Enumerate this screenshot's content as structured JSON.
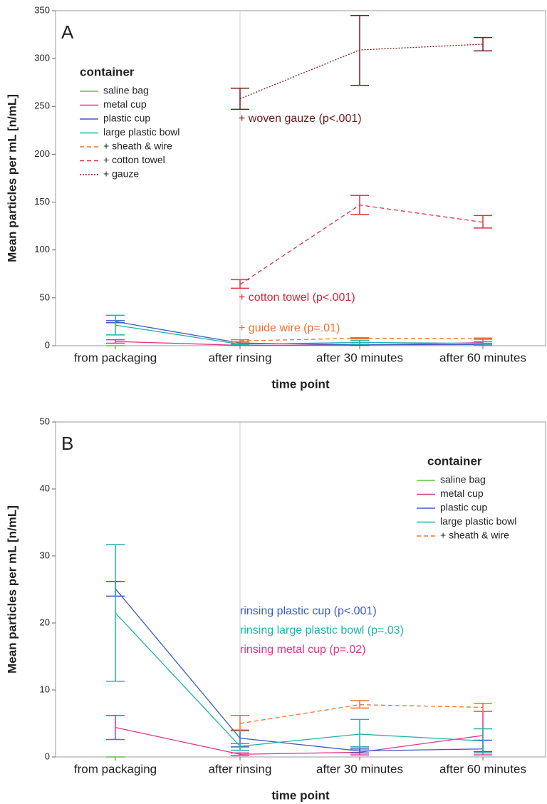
{
  "chart_data": [
    {
      "type": "line",
      "label": "A",
      "x_label": "time point",
      "y_label": "Mean particles per mL [n/mL]",
      "categories": [
        "from packaging",
        "after rinsing",
        "after 30 minutes",
        "after 60 minutes"
      ],
      "ylim": [
        0,
        350
      ],
      "yticks": [
        0,
        50,
        100,
        150,
        200,
        250,
        300,
        350
      ],
      "legend_title": "container",
      "legend": "upper left",
      "series": [
        {
          "name": "saline bag",
          "color": "#5cc43c",
          "dash": "solid",
          "values": [
            0,
            null,
            null,
            null
          ],
          "lower": [
            0,
            null,
            null,
            null
          ],
          "upper": [
            0,
            null,
            null,
            null
          ]
        },
        {
          "name": "metal cup",
          "color": "#e0358a",
          "dash": "solid",
          "values": [
            4.4,
            0.4,
            0.7,
            3.2
          ],
          "lower": [
            2.6,
            0.2,
            0.3,
            0.3
          ],
          "upper": [
            6.2,
            0.6,
            1.5,
            6.8
          ]
        },
        {
          "name": "plastic cup",
          "color": "#3a5bc4",
          "dash": "solid",
          "values": [
            25.1,
            2.8,
            0.9,
            1.2
          ],
          "lower": [
            24.0,
            1.5,
            0.6,
            0.8
          ],
          "upper": [
            26.2,
            4.0,
            1.2,
            2.5
          ]
        },
        {
          "name": "large plastic bowl",
          "color": "#22b2a8",
          "dash": "solid",
          "values": [
            21.5,
            1.6,
            3.4,
            2.4
          ],
          "lower": [
            11.3,
            1.0,
            1.5,
            0.6
          ],
          "upper": [
            31.7,
            2.0,
            5.6,
            4.2
          ]
        },
        {
          "name": "+ sheath & wire",
          "color": "#f07030",
          "dash": "dashed",
          "values": [
            null,
            5.0,
            7.8,
            7.4
          ],
          "lower": [
            null,
            3.9,
            7.3,
            6.8
          ],
          "upper": [
            null,
            6.2,
            8.4,
            8.0
          ]
        },
        {
          "name": "+ cotton towel",
          "color": "#e03040",
          "dash": "dashed",
          "values": [
            null,
            64,
            147,
            129
          ],
          "lower": [
            null,
            60,
            137,
            123
          ],
          "upper": [
            null,
            69,
            157,
            136
          ]
        },
        {
          "name": "+ gauze",
          "color": "#7a1a1a",
          "dash": "dotted",
          "values": [
            null,
            258,
            309,
            315
          ],
          "lower": [
            null,
            247,
            272,
            308
          ],
          "upper": [
            null,
            269,
            345,
            322
          ]
        }
      ],
      "annotations": [
        {
          "text": "+ woven gauze (p<.001)",
          "color": "#6a1818"
        },
        {
          "text": "+ cotton towel (p<.001)",
          "color": "#d02a3a"
        },
        {
          "text": "+ guide wire (p=.01)",
          "color": "#f07030"
        }
      ]
    },
    {
      "type": "line",
      "label": "B",
      "x_label": "time point",
      "y_label": "Mean particles per mL [n/mL]",
      "categories": [
        "from packaging",
        "after rinsing",
        "after 30 minutes",
        "after 60 minutes"
      ],
      "ylim": [
        0,
        50
      ],
      "yticks": [
        0,
        10,
        20,
        30,
        40,
        50
      ],
      "legend_title": "container",
      "legend": "upper right",
      "series": [
        {
          "name": "saline bag",
          "color": "#5cc43c",
          "dash": "solid",
          "values": [
            0,
            null,
            null,
            null
          ],
          "lower": [
            0,
            null,
            null,
            null
          ],
          "upper": [
            0,
            null,
            null,
            null
          ]
        },
        {
          "name": "metal cup",
          "color": "#e0358a",
          "dash": "solid",
          "values": [
            4.4,
            0.4,
            0.7,
            3.2
          ],
          "lower": [
            2.6,
            0.2,
            0.3,
            0.3
          ],
          "upper": [
            6.2,
            0.6,
            1.5,
            6.8
          ]
        },
        {
          "name": "plastic cup",
          "color": "#3a5bc4",
          "dash": "solid",
          "values": [
            25.1,
            2.8,
            0.9,
            1.2
          ],
          "lower": [
            24.0,
            1.5,
            0.6,
            0.8
          ],
          "upper": [
            26.2,
            4.0,
            1.2,
            2.5
          ]
        },
        {
          "name": "large plastic bowl",
          "color": "#22b2a8",
          "dash": "solid",
          "values": [
            21.5,
            1.6,
            3.4,
            2.4
          ],
          "lower": [
            11.3,
            1.0,
            1.5,
            0.6
          ],
          "upper": [
            31.7,
            2.0,
            5.6,
            4.2
          ]
        },
        {
          "name": "+ sheath & wire",
          "color": "#f07030",
          "dash": "dashed",
          "values": [
            null,
            5.0,
            7.8,
            7.4
          ],
          "lower": [
            null,
            3.9,
            7.3,
            6.8
          ],
          "upper": [
            null,
            6.2,
            8.4,
            8.0
          ]
        }
      ],
      "annotations": [
        {
          "text": "rinsing plastic cup (p<.001)",
          "color": "#3a5bc4"
        },
        {
          "text": "rinsing large plastic bowl (p=.03)",
          "color": "#22b2a8"
        },
        {
          "text": "rinsing metal cup (p=.02)",
          "color": "#e0358a"
        }
      ]
    }
  ]
}
